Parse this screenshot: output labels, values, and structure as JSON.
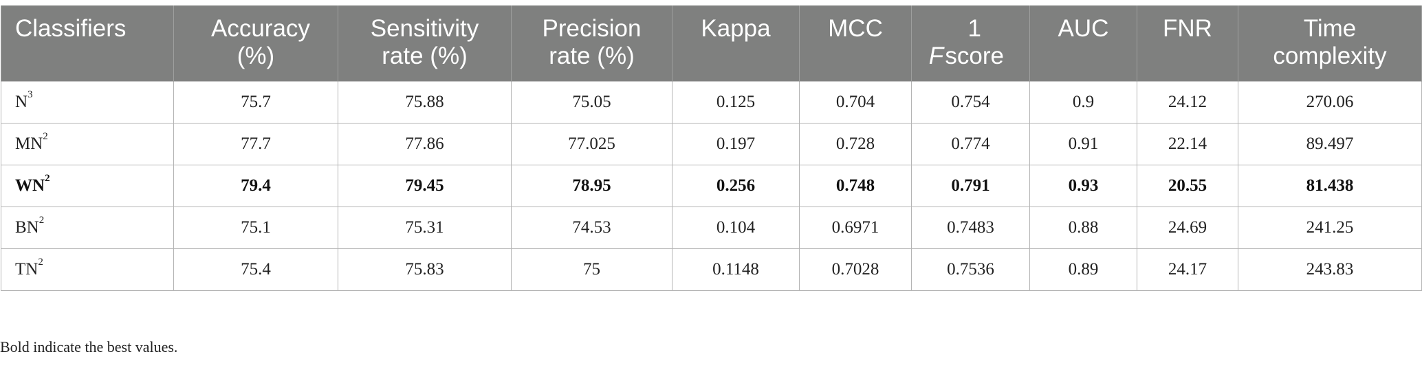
{
  "table": {
    "headers": [
      {
        "key": "classifiers",
        "label": "Classifiers"
      },
      {
        "key": "accuracy",
        "label": "Accuracy (%)"
      },
      {
        "key": "sensitivity",
        "label": "Sensitivity rate (%)"
      },
      {
        "key": "precision",
        "label": "Precision rate (%)"
      },
      {
        "key": "kappa",
        "label": "Kappa"
      },
      {
        "key": "mcc",
        "label": "MCC"
      },
      {
        "key": "f1_prefix",
        "label": "F"
      },
      {
        "key": "f1_suffix",
        "label": "1 score"
      },
      {
        "key": "auc",
        "label": "AUC"
      },
      {
        "key": "fnr",
        "label": "FNR"
      },
      {
        "key": "time",
        "label": "Time complexity"
      }
    ],
    "rows": [
      {
        "name": "N",
        "sup": "3",
        "accuracy": "75.7",
        "sensitivity": "75.88",
        "precision": "75.05",
        "kappa": "0.125",
        "mcc": "0.704",
        "f1": "0.754",
        "auc": "0.9",
        "fnr": "24.12",
        "time": "270.06"
      },
      {
        "name": "MN",
        "sup": "2",
        "accuracy": "77.7",
        "sensitivity": "77.86",
        "precision": "77.025",
        "kappa": "0.197",
        "mcc": "0.728",
        "f1": "0.774",
        "auc": "0.91",
        "fnr": "22.14",
        "time": "89.497"
      },
      {
        "name": "WN",
        "sup": "2",
        "accuracy": "79.4",
        "sensitivity": "79.45",
        "precision": "78.95",
        "kappa": "0.256",
        "mcc": "0.748",
        "f1": "0.791",
        "auc": "0.93",
        "fnr": "20.55",
        "time": "81.438"
      },
      {
        "name": "BN",
        "sup": "2",
        "accuracy": "75.1",
        "sensitivity": "75.31",
        "precision": "74.53",
        "kappa": "0.104",
        "mcc": "0.6971",
        "f1": "0.7483",
        "auc": "0.88",
        "fnr": "24.69",
        "time": "241.25"
      },
      {
        "name": "TN",
        "sup": "2",
        "accuracy": "75.4",
        "sensitivity": "75.83",
        "precision": "75",
        "kappa": "0.1148",
        "mcc": "0.7028",
        "f1": "0.7536",
        "auc": "0.89",
        "fnr": "24.17",
        "time": "243.83"
      }
    ]
  },
  "footnote": "Bold indicate the best values."
}
